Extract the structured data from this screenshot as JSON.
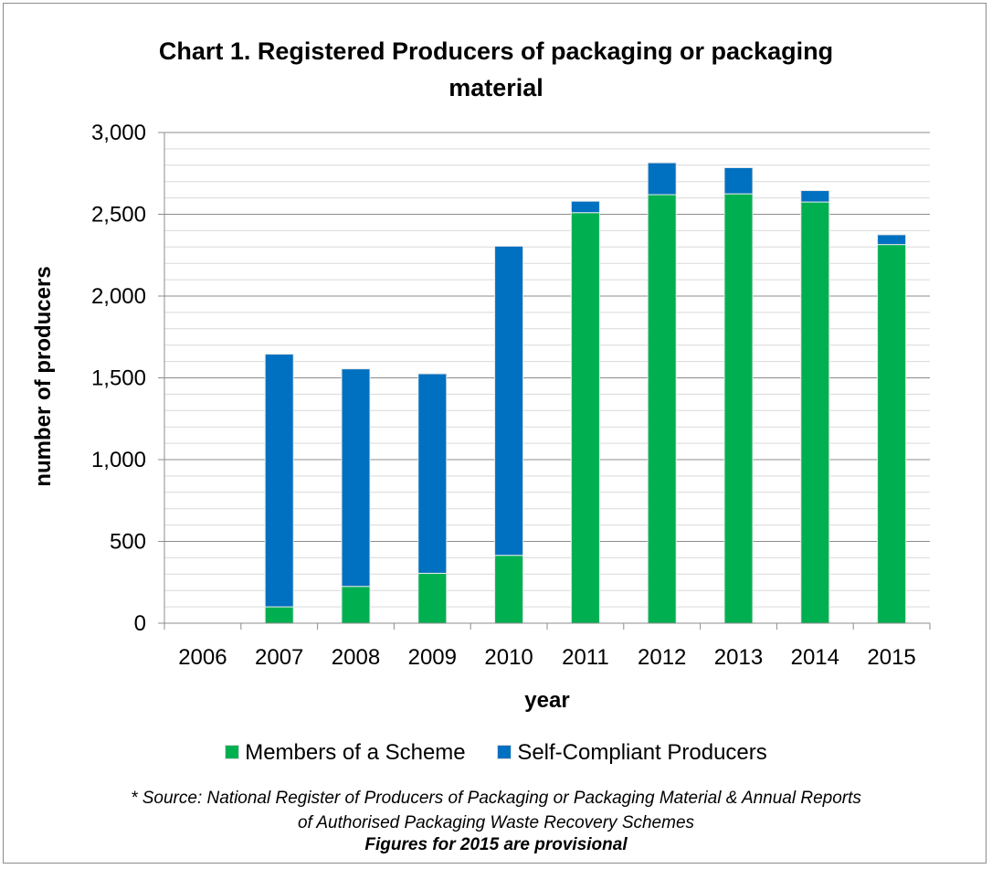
{
  "chart_data": {
    "type": "bar",
    "stacked": true,
    "title_lines": [
      "Chart 1. Registered Producers of packaging or packaging",
      "material"
    ],
    "xlabel": "year",
    "ylabel": "number of producers",
    "categories": [
      "2006",
      "2007",
      "2008",
      "2009",
      "2010",
      "2011",
      "2012",
      "2013",
      "2014",
      "2015"
    ],
    "series": [
      {
        "name": "Members of a Scheme",
        "color": "#00b050",
        "values": [
          0,
          100,
          225,
          305,
          415,
          2510,
          2620,
          2625,
          2575,
          2315
        ]
      },
      {
        "name": "Self-Compliant Producers",
        "color": "#0070c0",
        "values": [
          0,
          1545,
          1330,
          1220,
          1890,
          70,
          195,
          160,
          70,
          60
        ]
      }
    ],
    "ylim": [
      0,
      3000
    ],
    "y_ticks": [
      0,
      500,
      1000,
      1500,
      2000,
      2500,
      3000
    ],
    "y_tick_labels": [
      "0",
      "500",
      "1,000",
      "1,500",
      "2,000",
      "2,500",
      "3,000"
    ],
    "minor_gridline_step": 100,
    "grid": true,
    "legend_position": "bottom"
  },
  "source_lines": [
    "* Source: National Register of  Producers of Packaging or Packaging Material &  Annual Reports",
    "of Authorised Packaging Waste Recovery Schemes"
  ],
  "note": "Figures for 2015 are provisional"
}
